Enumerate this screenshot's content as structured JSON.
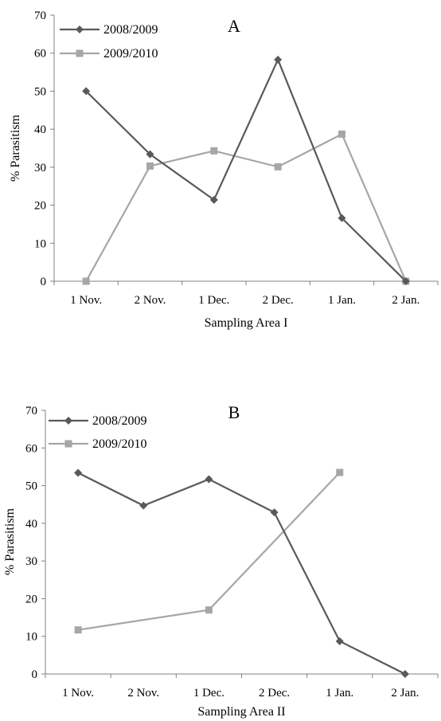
{
  "chart_data": [
    {
      "type": "line",
      "panel_label": "A",
      "categories": [
        "1 Nov.",
        "2 Nov.",
        "1 Dec.",
        "2 Dec.",
        "1 Jan.",
        "2 Jan."
      ],
      "series": [
        {
          "name": "2008/2009",
          "values": [
            50,
            33.4,
            21.4,
            58.3,
            16.6,
            0
          ],
          "color": "#595959",
          "marker": "diamond"
        },
        {
          "name": "2009/2010",
          "values": [
            0,
            30.3,
            34.3,
            30.1,
            38.7,
            0
          ],
          "color": "#a6a6a6",
          "marker": "square"
        }
      ],
      "xlabel": "Sampling Area I",
      "ylabel": "% Parasitism",
      "ylim": [
        0,
        70
      ],
      "yticks": [
        "0",
        "10",
        "20",
        "30",
        "40",
        "50",
        "60",
        "70"
      ],
      "grid": false,
      "legend": "top-left"
    },
    {
      "type": "line",
      "panel_label": "B",
      "categories": [
        "1 Nov.",
        "2 Nov.",
        "1 Dec.",
        "2 Dec.",
        "1 Jan.",
        "2 Jan."
      ],
      "series": [
        {
          "name": "2008/2009",
          "values": [
            53.4,
            44.7,
            51.7,
            42.9,
            8.7,
            0
          ],
          "color": "#595959",
          "marker": "diamond"
        },
        {
          "name": "2009/2010",
          "values": [
            11.7,
            null,
            17.0,
            null,
            53.5,
            null
          ],
          "color": "#a6a6a6",
          "marker": "square"
        }
      ],
      "xlabel": "Sampling Area II",
      "ylabel": "% Parasitism",
      "ylim": [
        0,
        70
      ],
      "yticks": [
        "0",
        "10",
        "20",
        "30",
        "40",
        "50",
        "60",
        "70"
      ],
      "grid": false,
      "legend": "top-left"
    }
  ]
}
